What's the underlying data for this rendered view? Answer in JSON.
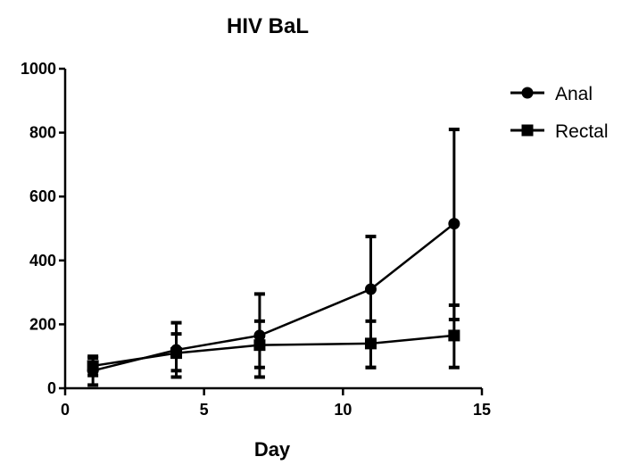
{
  "chart_data": {
    "type": "line",
    "title": "HIV BaL",
    "xlabel": "Day",
    "ylabel": "",
    "xlim": [
      0,
      15
    ],
    "ylim": [
      0,
      1000
    ],
    "x_ticks": [
      "0",
      "5",
      "10",
      "15"
    ],
    "y_ticks": [
      "0",
      "200",
      "400",
      "600",
      "800",
      "1000"
    ],
    "grid": false,
    "legend_position": "top-right",
    "series": [
      {
        "name": "Anal",
        "marker": "circle",
        "color": "#000000",
        "x": [
          1,
          4,
          7,
          11,
          14
        ],
        "y": [
          55,
          120,
          165,
          310,
          515
        ],
        "error_low": [
          10,
          35,
          35,
          65,
          215
        ],
        "error_high": [
          100,
          205,
          295,
          475,
          810
        ]
      },
      {
        "name": "Rectal",
        "marker": "square",
        "color": "#000000",
        "x": [
          1,
          4,
          7,
          11,
          14
        ],
        "y": [
          70,
          110,
          135,
          140,
          165
        ],
        "error_low": [
          40,
          55,
          65,
          65,
          65
        ],
        "error_high": [
          95,
          170,
          210,
          210,
          260
        ]
      }
    ]
  }
}
